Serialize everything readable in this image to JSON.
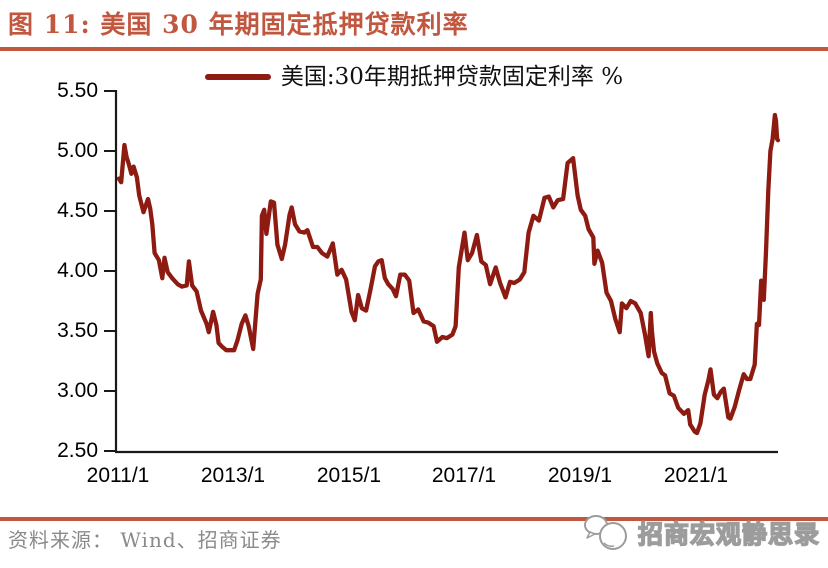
{
  "header": {
    "title": "图 11:  美国 30 年期固定抵押贷款利率"
  },
  "legend": {
    "label": "美国:30年期抵押贷款固定利率 %"
  },
  "footer": {
    "source": "资料来源： Wind、招商证券",
    "watermark": "招商宏观静思录"
  },
  "colors": {
    "accent": "#C0573E",
    "line": "#8E1B12",
    "axis": "#1a1a1a",
    "source_text": "#8A8A8A"
  },
  "chart_data": {
    "type": "line",
    "title": "美国:30年期抵押贷款固定利率 %",
    "xlabel": "",
    "ylabel": "",
    "ylim": [
      2.5,
      5.5
    ],
    "xlim": [
      "2011/1",
      "2022/6"
    ],
    "grid": false,
    "legend_position": "top",
    "yticks": [
      "5.50",
      "5.00",
      "4.50",
      "4.00",
      "3.50",
      "3.00",
      "2.50"
    ],
    "xticks": [
      "2011/1",
      "2013/1",
      "2015/1",
      "2017/1",
      "2019/1",
      "2021/1"
    ],
    "series": [
      {
        "name": "美国:30年期抵押贷款固定利率 %",
        "color": "#8E1B12",
        "points": [
          [
            "2011/1/6",
            4.77
          ],
          [
            "2011/1/20",
            4.74
          ],
          [
            "2011/2/10",
            5.05
          ],
          [
            "2011/2/24",
            4.95
          ],
          [
            "2011/3/10",
            4.88
          ],
          [
            "2011/3/24",
            4.81
          ],
          [
            "2011/4/7",
            4.87
          ],
          [
            "2011/4/28",
            4.78
          ],
          [
            "2011/5/12",
            4.63
          ],
          [
            "2011/6/9",
            4.49
          ],
          [
            "2011/7/7",
            4.6
          ],
          [
            "2011/7/21",
            4.52
          ],
          [
            "2011/8/4",
            4.39
          ],
          [
            "2011/8/18",
            4.15
          ],
          [
            "2011/9/15",
            4.09
          ],
          [
            "2011/10/6",
            3.94
          ],
          [
            "2011/10/20",
            4.11
          ],
          [
            "2011/11/10",
            3.99
          ],
          [
            "2011/12/8",
            3.94
          ],
          [
            "2012/1/12",
            3.89
          ],
          [
            "2012/2/9",
            3.87
          ],
          [
            "2012/3/8",
            3.88
          ],
          [
            "2012/3/22",
            4.08
          ],
          [
            "2012/4/12",
            3.88
          ],
          [
            "2012/5/10",
            3.83
          ],
          [
            "2012/6/7",
            3.67
          ],
          [
            "2012/7/12",
            3.56
          ],
          [
            "2012/7/26",
            3.49
          ],
          [
            "2012/8/23",
            3.66
          ],
          [
            "2012/9/13",
            3.55
          ],
          [
            "2012/9/27",
            3.4
          ],
          [
            "2012/10/18",
            3.37
          ],
          [
            "2012/11/15",
            3.34
          ],
          [
            "2012/12/6",
            3.34
          ],
          [
            "2013/1/3",
            3.34
          ],
          [
            "2013/1/24",
            3.42
          ],
          [
            "2013/2/21",
            3.56
          ],
          [
            "2013/3/14",
            3.63
          ],
          [
            "2013/4/4",
            3.54
          ],
          [
            "2013/4/25",
            3.4
          ],
          [
            "2013/5/2",
            3.35
          ],
          [
            "2013/5/30",
            3.81
          ],
          [
            "2013/6/20",
            3.93
          ],
          [
            "2013/6/27",
            4.46
          ],
          [
            "2013/7/11",
            4.51
          ],
          [
            "2013/7/25",
            4.31
          ],
          [
            "2013/8/22",
            4.58
          ],
          [
            "2013/9/12",
            4.57
          ],
          [
            "2013/10/3",
            4.22
          ],
          [
            "2013/10/31",
            4.1
          ],
          [
            "2013/11/21",
            4.22
          ],
          [
            "2013/12/19",
            4.47
          ],
          [
            "2014/1/2",
            4.53
          ],
          [
            "2014/1/23",
            4.39
          ],
          [
            "2014/2/20",
            4.33
          ],
          [
            "2014/3/20",
            4.32
          ],
          [
            "2014/4/10",
            4.34
          ],
          [
            "2014/5/15",
            4.2
          ],
          [
            "2014/6/12",
            4.2
          ],
          [
            "2014/7/10",
            4.15
          ],
          [
            "2014/8/14",
            4.12
          ],
          [
            "2014/9/18",
            4.23
          ],
          [
            "2014/10/16",
            3.97
          ],
          [
            "2014/11/13",
            4.01
          ],
          [
            "2014/12/11",
            3.93
          ],
          [
            "2014/12/24",
            3.83
          ],
          [
            "2015/1/15",
            3.66
          ],
          [
            "2015/2/5",
            3.59
          ],
          [
            "2015/2/26",
            3.8
          ],
          [
            "2015/3/19",
            3.69
          ],
          [
            "2015/4/16",
            3.67
          ],
          [
            "2015/5/14",
            3.85
          ],
          [
            "2015/6/11",
            4.04
          ],
          [
            "2015/7/2",
            4.08
          ],
          [
            "2015/7/23",
            4.09
          ],
          [
            "2015/8/13",
            3.94
          ],
          [
            "2015/9/3",
            3.89
          ],
          [
            "2015/10/1",
            3.85
          ],
          [
            "2015/10/22",
            3.79
          ],
          [
            "2015/11/19",
            3.97
          ],
          [
            "2015/12/17",
            3.97
          ],
          [
            "2016/1/14",
            3.92
          ],
          [
            "2016/2/11",
            3.65
          ],
          [
            "2016/3/10",
            3.68
          ],
          [
            "2016/4/14",
            3.58
          ],
          [
            "2016/5/12",
            3.57
          ],
          [
            "2016/6/16",
            3.54
          ],
          [
            "2016/7/7",
            3.41
          ],
          [
            "2016/8/11",
            3.45
          ],
          [
            "2016/9/8",
            3.44
          ],
          [
            "2016/10/13",
            3.47
          ],
          [
            "2016/11/3",
            3.54
          ],
          [
            "2016/11/23",
            4.03
          ],
          [
            "2016/12/29",
            4.32
          ],
          [
            "2017/1/19",
            4.09
          ],
          [
            "2017/2/16",
            4.15
          ],
          [
            "2017/3/16",
            4.3
          ],
          [
            "2017/4/13",
            4.08
          ],
          [
            "2017/5/11",
            4.05
          ],
          [
            "2017/6/8",
            3.89
          ],
          [
            "2017/7/13",
            4.03
          ],
          [
            "2017/8/10",
            3.9
          ],
          [
            "2017/9/14",
            3.78
          ],
          [
            "2017/10/12",
            3.91
          ],
          [
            "2017/11/9",
            3.9
          ],
          [
            "2017/12/14",
            3.93
          ],
          [
            "2018/1/11",
            3.99
          ],
          [
            "2018/2/8",
            4.32
          ],
          [
            "2018/3/8",
            4.46
          ],
          [
            "2018/4/12",
            4.42
          ],
          [
            "2018/5/17",
            4.61
          ],
          [
            "2018/6/14",
            4.62
          ],
          [
            "2018/7/12",
            4.53
          ],
          [
            "2018/8/9",
            4.59
          ],
          [
            "2018/9/13",
            4.6
          ],
          [
            "2018/10/11",
            4.9
          ],
          [
            "2018/11/15",
            4.94
          ],
          [
            "2018/12/13",
            4.63
          ],
          [
            "2019/1/3",
            4.51
          ],
          [
            "2019/1/31",
            4.46
          ],
          [
            "2019/2/21",
            4.35
          ],
          [
            "2019/3/21",
            4.28
          ],
          [
            "2019/3/28",
            4.06
          ],
          [
            "2019/4/18",
            4.17
          ],
          [
            "2019/5/16",
            4.07
          ],
          [
            "2019/6/13",
            3.82
          ],
          [
            "2019/7/11",
            3.75
          ],
          [
            "2019/8/8",
            3.6
          ],
          [
            "2019/9/5",
            3.49
          ],
          [
            "2019/9/19",
            3.73
          ],
          [
            "2019/10/17",
            3.69
          ],
          [
            "2019/11/14",
            3.75
          ],
          [
            "2019/12/12",
            3.73
          ],
          [
            "2020/1/16",
            3.65
          ],
          [
            "2020/2/13",
            3.47
          ],
          [
            "2020/3/5",
            3.29
          ],
          [
            "2020/3/19",
            3.65
          ],
          [
            "2020/3/26",
            3.5
          ],
          [
            "2020/4/9",
            3.33
          ],
          [
            "2020/4/30",
            3.23
          ],
          [
            "2020/5/28",
            3.15
          ],
          [
            "2020/6/18",
            3.13
          ],
          [
            "2020/7/16",
            2.98
          ],
          [
            "2020/8/13",
            2.96
          ],
          [
            "2020/9/10",
            2.86
          ],
          [
            "2020/10/15",
            2.81
          ],
          [
            "2020/11/12",
            2.84
          ],
          [
            "2020/11/25",
            2.72
          ],
          [
            "2020/12/24",
            2.66
          ],
          [
            "2021/1/7",
            2.65
          ],
          [
            "2021/1/28",
            2.73
          ],
          [
            "2021/2/25",
            2.97
          ],
          [
            "2021/3/18",
            3.09
          ],
          [
            "2021/4/1",
            3.18
          ],
          [
            "2021/4/22",
            2.97
          ],
          [
            "2021/5/13",
            2.94
          ],
          [
            "2021/6/3",
            2.99
          ],
          [
            "2021/6/24",
            3.02
          ],
          [
            "2021/7/22",
            2.78
          ],
          [
            "2021/8/5",
            2.77
          ],
          [
            "2021/9/2",
            2.87
          ],
          [
            "2021/9/30",
            3.01
          ],
          [
            "2021/10/28",
            3.14
          ],
          [
            "2021/11/18",
            3.1
          ],
          [
            "2021/12/9",
            3.1
          ],
          [
            "2022/1/6",
            3.22
          ],
          [
            "2022/1/20",
            3.56
          ],
          [
            "2022/2/3",
            3.55
          ],
          [
            "2022/2/17",
            3.92
          ],
          [
            "2022/2/24",
            3.89
          ],
          [
            "2022/3/3",
            3.76
          ],
          [
            "2022/3/17",
            4.16
          ],
          [
            "2022/3/31",
            4.67
          ],
          [
            "2022/4/14",
            5.0
          ],
          [
            "2022/4/28",
            5.1
          ],
          [
            "2022/5/12",
            5.3
          ],
          [
            "2022/5/19",
            5.25
          ],
          [
            "2022/5/26",
            5.1
          ],
          [
            "2022/6/2",
            5.09
          ]
        ]
      }
    ]
  }
}
